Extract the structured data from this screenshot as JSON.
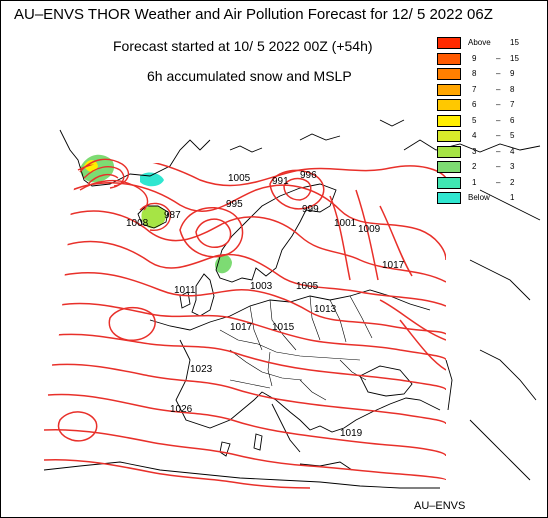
{
  "header": {
    "title": "AU–ENVS THOR Weather and Air Pollution Forecast for 12/ 5 2022  06Z",
    "forecast_start": "Forecast started at 10/ 5 2022  00Z (+54h)",
    "product": "6h accumulated snow and MSLP"
  },
  "footer": {
    "credit": "AU–ENVS"
  },
  "legend": {
    "items": [
      {
        "min": "Above",
        "max": "15",
        "color": "#ff2a00"
      },
      {
        "min": "9",
        "max": "15",
        "color": "#ff5a00"
      },
      {
        "min": "8",
        "max": "9",
        "color": "#ff7f00"
      },
      {
        "min": "7",
        "max": "8",
        "color": "#ffa500"
      },
      {
        "min": "6",
        "max": "7",
        "color": "#ffc800"
      },
      {
        "min": "5",
        "max": "6",
        "color": "#ffee00"
      },
      {
        "min": "4",
        "max": "5",
        "color": "#d8ea2a"
      },
      {
        "min": "3",
        "max": "4",
        "color": "#a6e445"
      },
      {
        "min": "2",
        "max": "3",
        "color": "#7ddb73"
      },
      {
        "min": "1",
        "max": "2",
        "color": "#40e6b2"
      },
      {
        "min": "Below",
        "max": "1",
        "color": "#30e6d0"
      }
    ]
  },
  "isobar_labels": [
    "1005",
    "991",
    "996",
    "987",
    "995",
    "1008",
    "999",
    "1001",
    "1009",
    "1017",
    "1011",
    "1003",
    "1005",
    "1013",
    "1015",
    "1017",
    "1023",
    "1026",
    "1019"
  ],
  "colors": {
    "isobar": "#e8302a",
    "coast": "#000000",
    "background": "#ffffff"
  }
}
